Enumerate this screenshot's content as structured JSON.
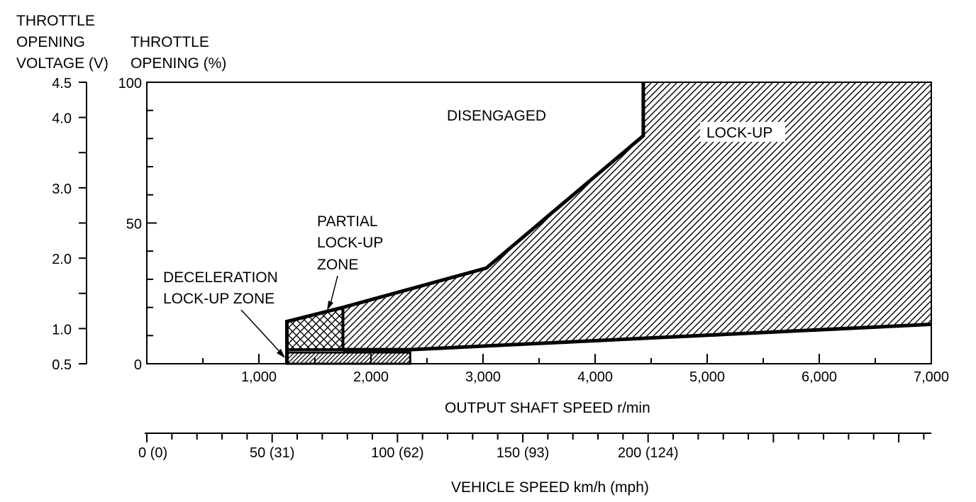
{
  "chart_data": {
    "type": "area",
    "title": "",
    "y_left_label": [
      "THROTTLE",
      "OPENING",
      "VOLTAGE (V)"
    ],
    "y_right_label": [
      "THROTTLE",
      "OPENING (%)"
    ],
    "xlabel": "OUTPUT SHAFT SPEED r/min",
    "x2label": "VEHICLE SPEED km/h (mph)",
    "xlim": [
      0,
      7000
    ],
    "ylim": [
      0,
      100
    ],
    "voltage_lim": [
      0.5,
      4.5
    ],
    "x_ticks": [
      1000,
      2000,
      3000,
      4000,
      5000,
      6000,
      7000
    ],
    "x_tick_labels": [
      "1,000",
      "2,000",
      "3,000",
      "4,000",
      "5,000",
      "6,000",
      "7,000"
    ],
    "y_ticks": [
      0,
      50,
      100
    ],
    "y_tick_labels": [
      "0",
      "50",
      "100"
    ],
    "voltage_ticks": [
      0.5,
      1.0,
      2.0,
      3.0,
      4.0,
      4.5
    ],
    "voltage_tick_labels": [
      "0.5",
      "1.0",
      "2.0",
      "3.0",
      "4.0",
      "4.5"
    ],
    "vehicle_axis": {
      "km_h_max": 313,
      "labeled_ticks": [
        0,
        50,
        100,
        150,
        200
      ],
      "tick_labels": [
        "0 (0)",
        "50 (31)",
        "100 (62)",
        "150 (93)",
        "200 (124)"
      ]
    },
    "regions": [
      {
        "name": "DISENGAGED",
        "label": [
          "DISENGAGED"
        ],
        "pattern": "none",
        "boundary": [
          [
            1250,
            0
          ],
          [
            1250,
            15
          ],
          [
            1750,
            20
          ],
          [
            3030,
            34
          ],
          [
            4430,
            81
          ],
          [
            4430,
            100
          ],
          [
            0,
            100
          ],
          [
            0,
            0
          ]
        ]
      },
      {
        "name": "LOCK-UP",
        "label": [
          "LOCK-UP"
        ],
        "pattern": "diagonal",
        "boundary": [
          [
            1750,
            20
          ],
          [
            3030,
            34
          ],
          [
            4430,
            81
          ],
          [
            4430,
            100
          ],
          [
            7000,
            100
          ],
          [
            7000,
            14
          ],
          [
            2350,
            5
          ],
          [
            1750,
            5
          ]
        ]
      },
      {
        "name": "PARTIAL LOCK-UP ZONE",
        "label": [
          "PARTIAL",
          "LOCK-UP",
          "ZONE"
        ],
        "pattern": "crosshatch",
        "boundary": [
          [
            1250,
            5
          ],
          [
            1250,
            15
          ],
          [
            1750,
            20
          ],
          [
            1750,
            5
          ]
        ]
      },
      {
        "name": "DECELERATION LOCK-UP ZONE",
        "label": [
          "DECELERATION",
          "LOCK-UP ZONE"
        ],
        "pattern": "diagonal-dense",
        "boundary": [
          [
            1250,
            0
          ],
          [
            1250,
            4
          ],
          [
            2350,
            4
          ],
          [
            2350,
            0
          ]
        ]
      }
    ]
  }
}
